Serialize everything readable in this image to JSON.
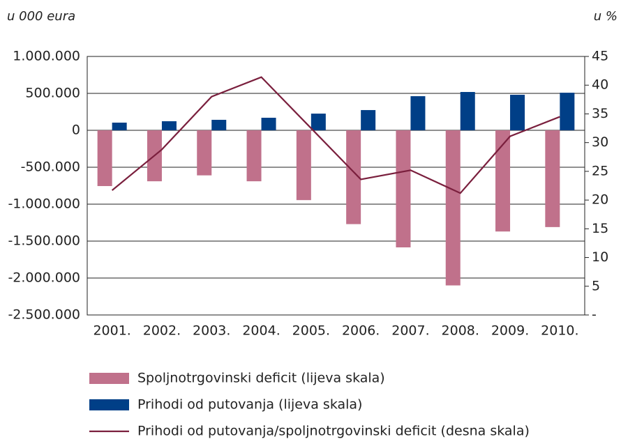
{
  "chart_data": {
    "type": "bar_line",
    "y_label": "u 000 eura",
    "y2_label": "u %",
    "categories": [
      "2001.",
      "2002.",
      "2003.",
      "2004.",
      "2005.",
      "2006.",
      "2007.",
      "2008.",
      "2009.",
      "2010."
    ],
    "series": [
      {
        "name": "Spoljnotrgovinski deficit (lijeva skala)",
        "color": "#c0718b",
        "kind": "bar",
        "values": [
          -755000,
          -690000,
          -610000,
          -690000,
          -945000,
          -1270000,
          -1585000,
          -2100000,
          -1370000,
          -1310000
        ]
      },
      {
        "name": "Prihodi od putovanja (lijeva skala)",
        "color": "#003f87",
        "kind": "bar",
        "values": [
          104000,
          123000,
          142000,
          170000,
          226000,
          274000,
          462000,
          519000,
          481000,
          509000
        ]
      },
      {
        "name": "Prihodi od putovanja/spoljnotrgovinski deficit (desna skala)",
        "color": "#7a1f3d",
        "kind": "line",
        "axis": "y2",
        "values": [
          21.7,
          28.8,
          38.0,
          41.4,
          32.5,
          23.6,
          25.2,
          21.2,
          31.1,
          34.5
        ]
      }
    ],
    "ylim": [
      -2500000,
      1000000
    ],
    "yticks": [
      {
        "value": 1000000,
        "label": "1.000.000"
      },
      {
        "value": 500000,
        "label": "500.000"
      },
      0,
      {
        "value": -500000,
        "label": "-500.000"
      },
      {
        "value": -1000000,
        "label": "-1.000.000"
      },
      {
        "value": -1500000,
        "label": "-1.500.000"
      },
      {
        "value": -2000000,
        "label": "-2.000.000"
      },
      {
        "value": -2500000,
        "label": "-2.500.000"
      }
    ],
    "y2lim": [
      0,
      45
    ],
    "y2ticks": [
      45,
      40,
      35,
      30,
      25,
      20,
      15,
      10,
      5,
      {
        "value": 0,
        "label": "-"
      }
    ],
    "grid": true
  }
}
